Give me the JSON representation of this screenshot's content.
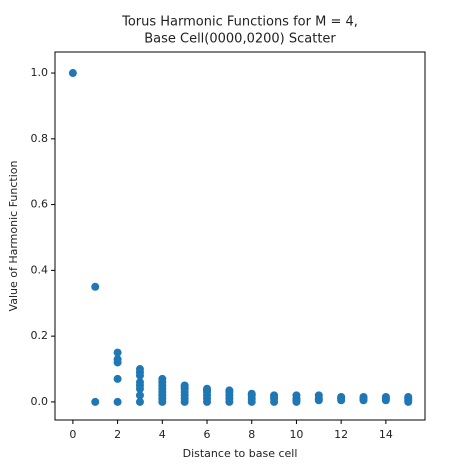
{
  "chart_data": {
    "type": "scatter",
    "title": [
      "Torus Harmonic Functions for M = 4,",
      "Base Cell(0000,0200) Scatter"
    ],
    "xlabel": "Distance to base cell",
    "ylabel": "Value of Harmonic Function",
    "series": [
      {
        "color": "#1f77b4",
        "x": [
          0,
          1,
          1,
          2,
          2,
          2,
          2,
          2,
          3,
          3,
          3,
          3,
          3,
          3,
          3,
          3,
          4,
          4,
          4,
          4,
          4,
          4,
          4,
          4,
          5,
          5,
          5,
          5,
          5,
          5,
          5,
          6,
          6,
          6,
          6,
          6,
          6,
          7,
          7,
          7,
          7,
          7,
          8,
          8,
          8,
          8,
          9,
          9,
          9,
          9,
          10,
          10,
          10,
          10,
          11,
          11,
          11,
          12,
          12,
          12,
          13,
          13,
          13,
          14,
          14,
          14,
          15,
          15,
          15,
          15
        ],
        "values": [
          1.0,
          0.35,
          0.0,
          0.15,
          0.13,
          0.12,
          0.07,
          0.0,
          0.1,
          0.09,
          0.08,
          0.06,
          0.05,
          0.04,
          0.02,
          0.0,
          0.07,
          0.06,
          0.05,
          0.04,
          0.03,
          0.02,
          0.01,
          0.0,
          0.05,
          0.045,
          0.04,
          0.03,
          0.02,
          0.01,
          0.0,
          0.04,
          0.035,
          0.03,
          0.02,
          0.01,
          0.0,
          0.035,
          0.03,
          0.02,
          0.01,
          0.0,
          0.025,
          0.02,
          0.01,
          0.0,
          0.02,
          0.015,
          0.01,
          0.0,
          0.02,
          0.01,
          0.005,
          0.0,
          0.02,
          0.01,
          0.005,
          0.015,
          0.01,
          0.005,
          0.015,
          0.01,
          0.005,
          0.015,
          0.01,
          0.005,
          0.015,
          0.01,
          0.005,
          0.0
        ]
      }
    ],
    "xlim": [
      -0.8,
      15.75
    ],
    "ylim": [
      -0.055,
      1.064
    ],
    "xticks": [
      0,
      2,
      4,
      6,
      8,
      10,
      12,
      14
    ],
    "yticks": [
      {
        "value": 0,
        "label": "0.0"
      },
      0.2,
      0.4,
      0.6,
      0.8,
      {
        "value": 1,
        "label": "1.0"
      }
    ]
  }
}
